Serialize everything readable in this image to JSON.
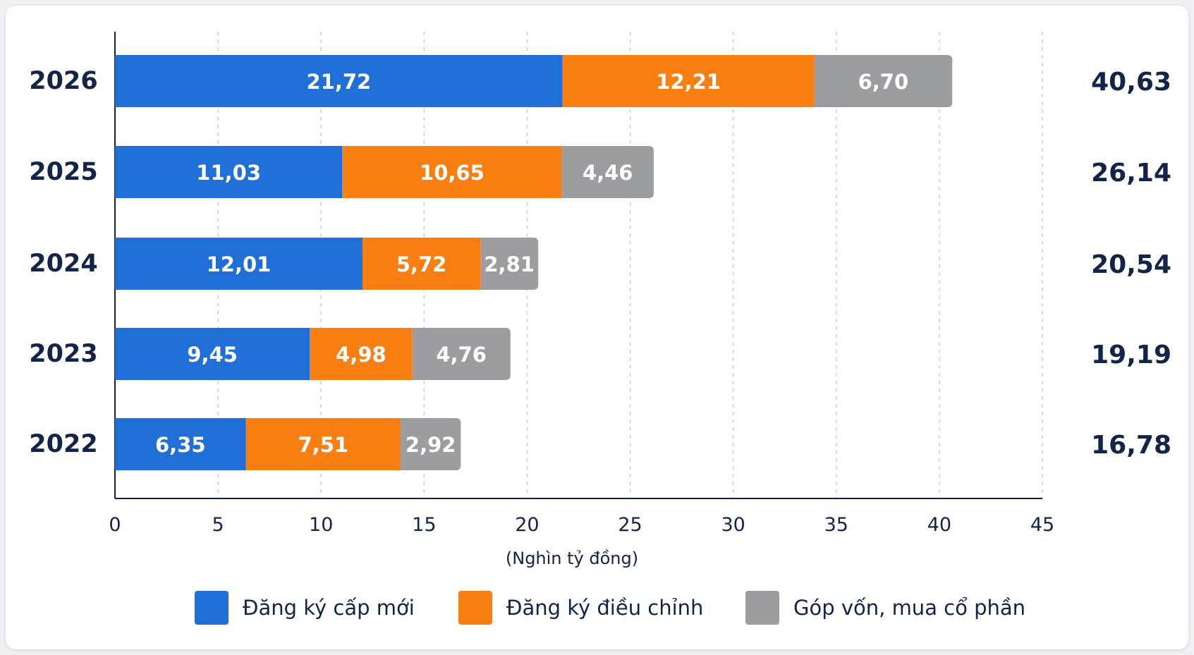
{
  "chart_data": {
    "type": "bar",
    "orientation": "horizontal",
    "stacked": true,
    "categories": [
      "2026",
      "2025",
      "2024",
      "2023",
      "2022"
    ],
    "series": [
      {
        "name": "Đăng ký cấp mới",
        "color": "#1f6fd6",
        "values": [
          21.72,
          11.03,
          12.01,
          9.45,
          6.35
        ],
        "labels": [
          "21,72",
          "11,03",
          "12,01",
          "9,45",
          "6,35"
        ]
      },
      {
        "name": "Đăng ký điều chỉnh",
        "color": "#fa7f12",
        "values": [
          12.21,
          10.65,
          5.72,
          4.98,
          7.51
        ],
        "labels": [
          "12,21",
          "10,65",
          "5,72",
          "4,98",
          "7,51"
        ]
      },
      {
        "name": "Góp vốn, mua cổ phần",
        "color": "#9c9da1",
        "values": [
          6.7,
          4.46,
          2.81,
          4.76,
          2.92
        ],
        "labels": [
          "6,70",
          "4,46",
          "2,81",
          "4,76",
          "2,92"
        ]
      }
    ],
    "totals": [
      "40,63",
      "26,14",
      "20,54",
      "19,19",
      "16,78"
    ],
    "xlabel": "(Nghìn tỷ đồng)",
    "xlim": [
      0,
      45
    ],
    "xticks": [
      "0",
      "5",
      "10",
      "15",
      "20",
      "25",
      "30",
      "35",
      "40",
      "45"
    ],
    "grid": "vertical-dashed",
    "legend_position": "bottom"
  }
}
